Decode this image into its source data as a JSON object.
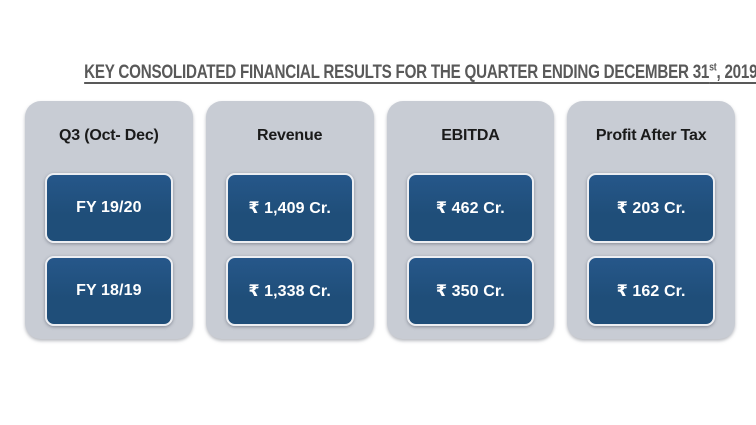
{
  "title": {
    "part1": "KEY CONSOLIDATED FINANCIAL RESULTS FOR THE QUARTER ENDING DECEMBER 31",
    "sup": "st",
    "part2": ", 2019"
  },
  "columns": [
    {
      "header": "Q3 (Oct- Dec)",
      "rows": [
        "FY 19/20",
        "FY 18/19"
      ]
    },
    {
      "header": "Revenue",
      "rows": [
        "₹ 1,409 Cr.",
        "₹ 1,338 Cr."
      ]
    },
    {
      "header": "EBITDA",
      "rows": [
        "₹ 462 Cr.",
        "₹ 350 Cr."
      ]
    },
    {
      "header": "Profit After Tax",
      "rows": [
        "₹ 203 Cr.",
        "₹ 162 Cr."
      ]
    }
  ],
  "colors": {
    "panel_background": "#C8CCD4",
    "value_box_background": "#1F4E79",
    "value_box_border": "#ECEEF2",
    "title_text": "#595959",
    "header_text": "#1A1A1A",
    "value_text": "#FFFFFF"
  },
  "chart_data": {
    "type": "table",
    "title": "KEY CONSOLIDATED FINANCIAL RESULTS FOR THE QUARTER ENDING DECEMBER 31st, 2019",
    "period": "Q3 (Oct- Dec)",
    "categories": [
      "FY 19/20",
      "FY 18/19"
    ],
    "series": [
      {
        "name": "Revenue",
        "values": [
          1409,
          1338
        ],
        "unit": "₹ Cr."
      },
      {
        "name": "EBITDA",
        "values": [
          462,
          350
        ],
        "unit": "₹ Cr."
      },
      {
        "name": "Profit After Tax",
        "values": [
          203,
          162
        ],
        "unit": "₹ Cr."
      }
    ]
  }
}
